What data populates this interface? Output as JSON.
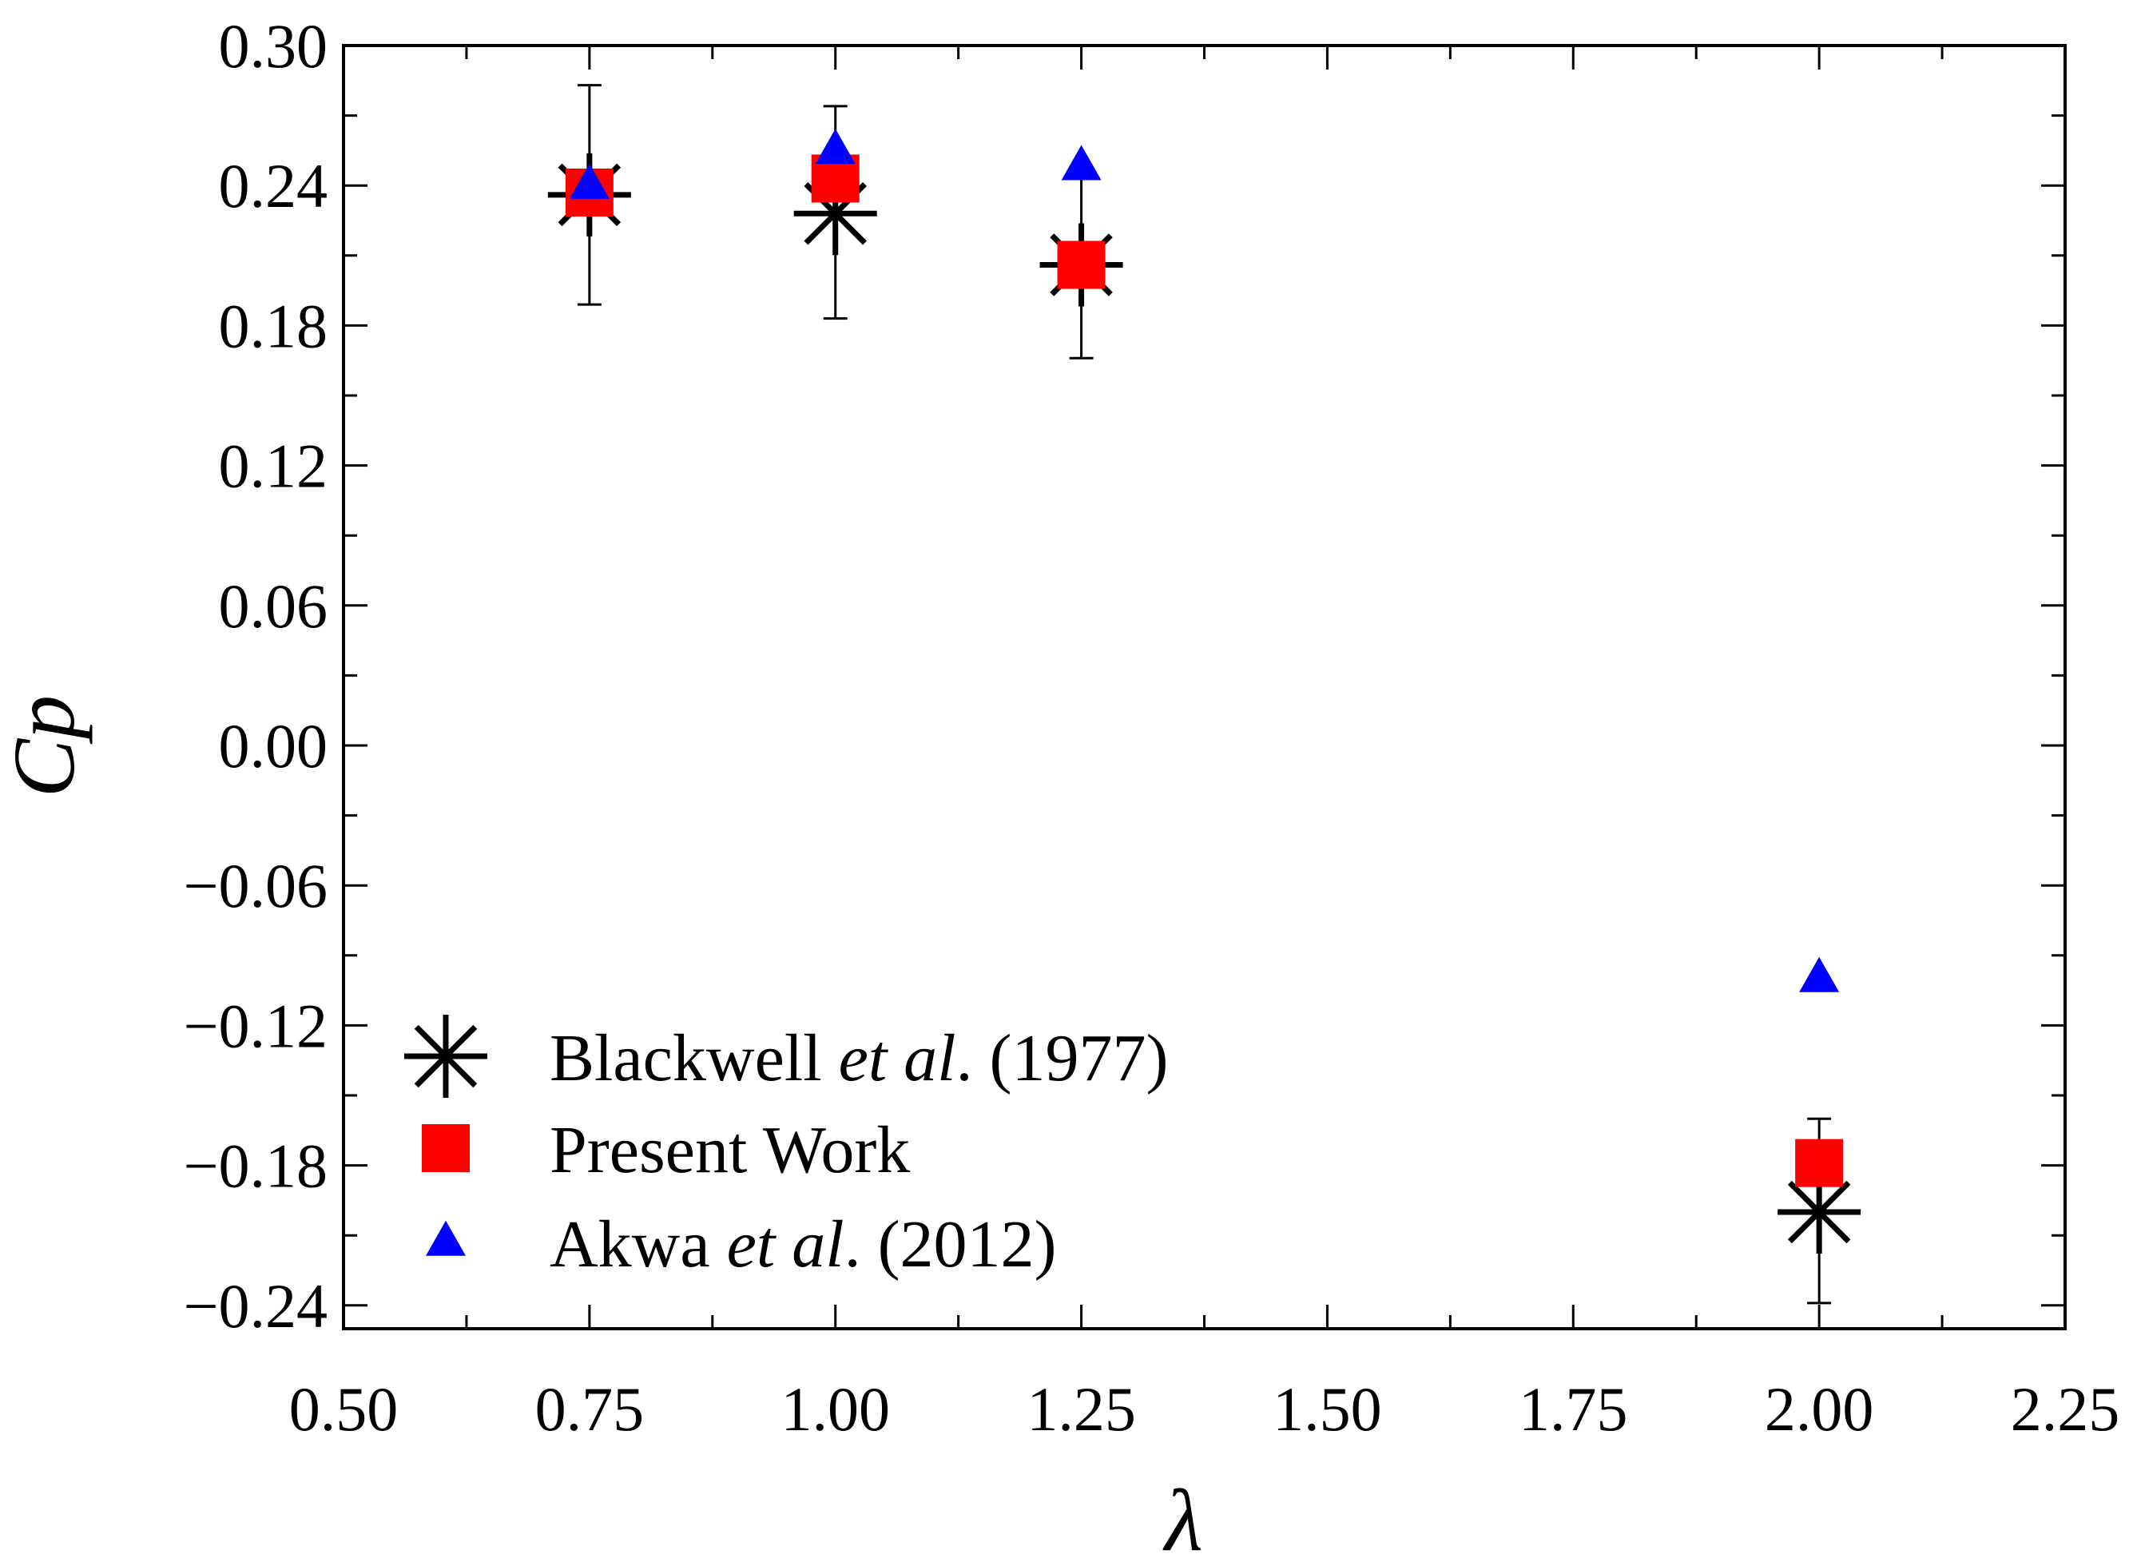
{
  "chart_data": {
    "type": "scatter",
    "title": "",
    "xlabel": "λ",
    "ylabel": "Cp",
    "xlim": [
      0.5,
      2.25
    ],
    "ylim": [
      -0.25,
      0.3
    ],
    "x_ticks": [
      "0.50",
      "0.75",
      "1.00",
      "1.25",
      "1.50",
      "1.75",
      "2.00",
      "2.25"
    ],
    "y_ticks": [
      "0.30",
      "0.24",
      "0.18",
      "0.12",
      "0.06",
      "0.00",
      "−0.06",
      "−0.12",
      "−0.18",
      "−0.24"
    ],
    "grid": false,
    "legend_position": "bottom-left",
    "series": [
      {
        "name": "Blackwell et al. (1977)",
        "legend_parts": [
          "Blackwell ",
          "et al",
          ". (1977)"
        ],
        "marker": "asterisk",
        "color": "#000000",
        "x": [
          0.75,
          1.0,
          1.25,
          2.0
        ],
        "y": [
          0.236,
          0.228,
          0.206,
          -0.2
        ],
        "error_low": [
          0.189,
          0.183,
          0.166,
          -0.239
        ],
        "error_high": [
          0.283,
          0.274,
          0.246,
          -0.16
        ]
      },
      {
        "name": "Present Work",
        "legend_parts": [
          "Present Work",
          "",
          ""
        ],
        "marker": "square",
        "color": "#ff0000",
        "x": [
          0.75,
          1.0,
          1.25,
          2.0
        ],
        "y": [
          0.237,
          0.243,
          0.206,
          -0.179
        ]
      },
      {
        "name": "Akwa et al. (2012)",
        "legend_parts": [
          "Akwa ",
          "et al",
          ". (2012)"
        ],
        "marker": "triangle",
        "color": "#0000ff",
        "x": [
          0.75,
          1.0,
          1.25,
          2.0
        ],
        "y": [
          0.24,
          0.255,
          0.248,
          -0.1
        ]
      }
    ]
  }
}
